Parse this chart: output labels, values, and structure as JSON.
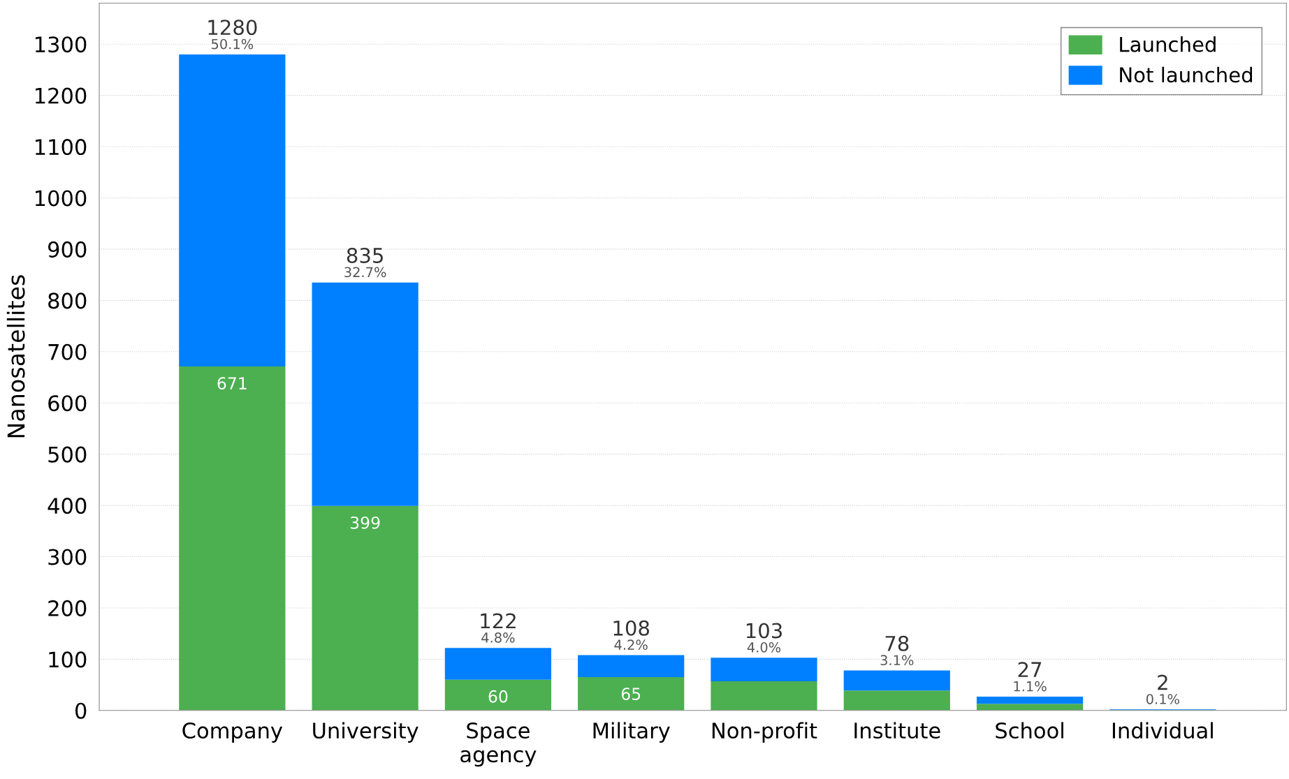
{
  "chart_data": {
    "type": "bar",
    "stacked": true,
    "ylabel": "Nanosatellites",
    "categories": [
      "Company",
      "University",
      "Space\nagency",
      "Military",
      "Non-profit",
      "Institute",
      "School",
      "Individual"
    ],
    "series": [
      {
        "name": "Launched",
        "color": "#4caf50",
        "values": [
          671,
          399,
          60,
          65,
          57,
          39,
          13,
          1
        ],
        "value_labels": [
          "671",
          "399",
          "60",
          "65",
          null,
          null,
          null,
          null
        ]
      },
      {
        "name": "Not launched",
        "color": "#0080ff",
        "values": [
          609,
          436,
          62,
          43,
          46,
          39,
          14,
          1
        ]
      }
    ],
    "totals": [
      "1280",
      "835",
      "122",
      "108",
      "103",
      "78",
      "27",
      "2"
    ],
    "annotations": [
      {
        "text": "50.1%",
        "x": "Company",
        "y": 1280
      },
      {
        "text": "32.7%",
        "x": "University",
        "y": 835
      },
      {
        "text": "4.8%",
        "x": "Space\nagency",
        "y": 122
      },
      {
        "text": "4.2%",
        "x": "Military",
        "y": 108
      },
      {
        "text": "4.0%",
        "x": "Non-profit",
        "y": 103
      },
      {
        "text": "3.1%",
        "x": "Institute",
        "y": 78
      },
      {
        "text": "1.1%",
        "x": "School",
        "y": 27
      },
      {
        "text": "0.1%",
        "x": "Individual",
        "y": 2
      }
    ],
    "ylim": [
      0,
      1380
    ],
    "yticks": [
      0,
      100,
      200,
      300,
      400,
      500,
      600,
      700,
      800,
      900,
      1000,
      1100,
      1200,
      1300
    ],
    "grid": "y",
    "legend": "top right"
  }
}
